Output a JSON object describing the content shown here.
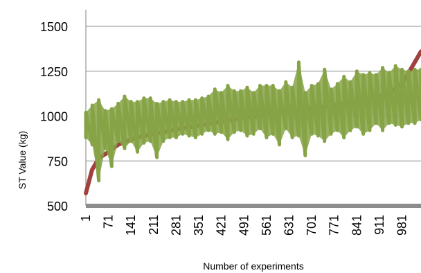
{
  "chart_data": {
    "type": "line",
    "title": "",
    "xlabel": "Number of experiments",
    "ylabel": "ST Value  (kg)",
    "ylim": [
      500,
      1500
    ],
    "xlim": [
      1,
      1040
    ],
    "y_ticks": [
      500,
      750,
      1000,
      1250,
      1500
    ],
    "x_ticks": [
      1,
      71,
      141,
      211,
      281,
      351,
      421,
      491,
      561,
      631,
      701,
      771,
      841,
      911,
      981
    ],
    "grid": true,
    "legend": "none",
    "colors": {
      "sorted_line": "#A0413F",
      "noisy_line": "#86A346",
      "grid": "#8C8C8C",
      "axis": "#7F7F7F",
      "baseline_band": "#8C8C8C",
      "text": "#000000"
    },
    "series": [
      {
        "key": "sorted",
        "x": [
          1,
          20,
          41,
          71,
          101,
          141,
          181,
          211,
          251,
          281,
          351,
          421,
          491,
          561,
          631,
          701,
          771,
          841,
          911,
          951,
          981,
          1011,
          1040
        ],
        "values": [
          570,
          700,
          765,
          800,
          840,
          870,
          890,
          900,
          915,
          925,
          948,
          970,
          990,
          1008,
          1025,
          1042,
          1060,
          1080,
          1110,
          1140,
          1180,
          1270,
          1360
        ]
      },
      {
        "key": "noisy",
        "x": [
          1,
          21,
          41,
          61,
          81,
          101,
          121,
          141,
          161,
          181,
          201,
          221,
          241,
          261,
          281,
          301,
          321,
          341,
          361,
          381,
          401,
          421,
          441,
          461,
          481,
          501,
          521,
          541,
          561,
          581,
          601,
          621,
          641,
          661,
          681,
          701,
          721,
          741,
          761,
          781,
          801,
          821,
          841,
          861,
          881,
          901,
          921,
          941,
          961,
          981,
          1001,
          1021,
          1040
        ],
        "min": [
          880,
          840,
          640,
          820,
          720,
          860,
          820,
          860,
          800,
          850,
          860,
          770,
          860,
          880,
          880,
          900,
          890,
          880,
          900,
          920,
          900,
          910,
          870,
          910,
          920,
          890,
          900,
          930,
          880,
          900,
          840,
          930,
          880,
          890,
          780,
          900,
          890,
          860,
          900,
          920,
          880,
          920,
          940,
          900,
          920,
          960,
          920,
          960,
          950,
          940,
          960,
          960,
          980
        ],
        "max": [
          1020,
          1060,
          1090,
          1030,
          1040,
          1070,
          1110,
          1080,
          1080,
          1100,
          1100,
          1070,
          1080,
          1090,
          1080,
          1080,
          1090,
          1090,
          1100,
          1110,
          1150,
          1130,
          1170,
          1140,
          1140,
          1160,
          1130,
          1170,
          1170,
          1170,
          1140,
          1190,
          1160,
          1300,
          1130,
          1170,
          1180,
          1260,
          1150,
          1180,
          1220,
          1190,
          1250,
          1230,
          1240,
          1230,
          1270,
          1240,
          1280,
          1260,
          1250,
          1260,
          1260
        ]
      }
    ]
  }
}
